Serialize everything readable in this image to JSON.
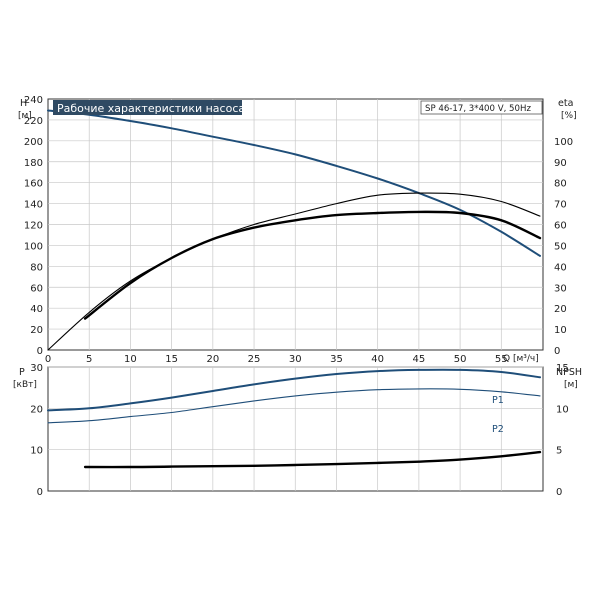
{
  "chart_data": [
    {
      "type": "line",
      "title": "Рабочие характеристики насоса",
      "subtitle": "SP 46-17, 3*400 V, 50Hz",
      "xlabel": "Q [м³/ч]",
      "ylabel_left_top": "H",
      "ylabel_left_unit": "[м]",
      "ylabel_right_top": "eta",
      "ylabel_right_unit": "[%]",
      "xlim": [
        0,
        60
      ],
      "x_ticks": [
        "0",
        "5",
        "10",
        "15",
        "20",
        "25",
        "30",
        "35",
        "40",
        "45",
        "50",
        "55"
      ],
      "ylim_left": [
        0,
        240
      ],
      "y_ticks_left": [
        "0",
        "20",
        "40",
        "60",
        "80",
        "100",
        "120",
        "140",
        "160",
        "180",
        "200",
        "220",
        "240"
      ],
      "ylim_right": [
        0,
        120
      ],
      "y_ticks_right": [
        "0",
        "10",
        "20",
        "30",
        "40",
        "50",
        "60",
        "70",
        "80",
        "90",
        "100"
      ],
      "grid": true,
      "series": [
        {
          "axis": "left",
          "color": "#1f4e79",
          "x": [
            0,
            5,
            10,
            15,
            20,
            25,
            30,
            35,
            40,
            45,
            50,
            55,
            59.7
          ],
          "values": [
            229,
            225,
            219,
            212,
            204,
            196,
            187,
            176,
            164,
            150,
            134,
            113,
            90
          ]
        },
        {
          "axis": "right",
          "color": "#000000",
          "x": [
            4.5,
            10,
            15,
            20,
            25,
            30,
            35,
            40,
            45,
            50,
            55,
            59.7
          ],
          "values": [
            15,
            32,
            44,
            53,
            58.5,
            62,
            64.5,
            65.5,
            66,
            65.5,
            62,
            53.5
          ]
        },
        {
          "axis": "right",
          "color": "#000000",
          "x": [
            0,
            5,
            10,
            15,
            20,
            25,
            30,
            35,
            40,
            45,
            50,
            55,
            59.7
          ],
          "values": [
            0,
            18,
            33,
            44,
            53,
            60,
            65,
            70,
            74,
            75,
            74.5,
            71,
            64
          ]
        }
      ]
    },
    {
      "type": "line",
      "ylabel_left_top": "P",
      "ylabel_left_unit": "[кВт]",
      "ylabel_right_top": "NPSH",
      "ylabel_right_unit": "[м]",
      "xlim": [
        0,
        60
      ],
      "ylim_left": [
        0,
        30
      ],
      "y_ticks_left": [
        "0",
        "10",
        "20",
        "30"
      ],
      "ylim_right": [
        0,
        15
      ],
      "y_ticks_right": [
        "0",
        "5",
        "10",
        "15"
      ],
      "grid": true,
      "series": [
        {
          "name": "P1",
          "axis": "left",
          "color": "#1f4e79",
          "x": [
            0,
            5,
            10,
            15,
            20,
            25,
            30,
            35,
            40,
            45,
            50,
            55,
            59.7
          ],
          "values": [
            19.5,
            20,
            21.2,
            22.6,
            24.2,
            25.8,
            27.2,
            28.3,
            29,
            29.3,
            29.3,
            28.8,
            27.5
          ]
        },
        {
          "name": "P2",
          "axis": "left",
          "color": "#1f4e79",
          "x": [
            0,
            5,
            10,
            15,
            20,
            25,
            30,
            35,
            40,
            45,
            50,
            55,
            59.7
          ],
          "values": [
            16.5,
            17,
            18,
            19,
            20.4,
            21.8,
            23,
            23.9,
            24.5,
            24.7,
            24.6,
            24,
            23
          ]
        },
        {
          "axis": "right",
          "color": "#000000",
          "x": [
            4.5,
            10,
            15,
            20,
            25,
            30,
            35,
            40,
            45,
            50,
            55,
            59.7
          ],
          "values": [
            2.9,
            2.9,
            2.95,
            3,
            3.05,
            3.15,
            3.25,
            3.4,
            3.55,
            3.8,
            4.2,
            4.7
          ]
        }
      ]
    }
  ]
}
